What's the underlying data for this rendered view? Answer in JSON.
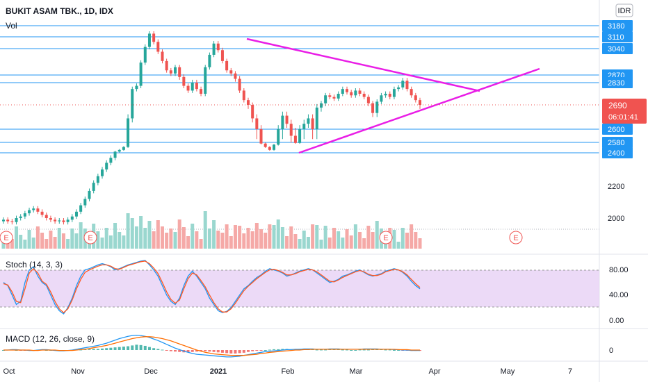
{
  "header": {
    "title": "BUKIT ASAM TBK., 1D, IDX",
    "volume_label": "Vol",
    "currency": "IDR"
  },
  "indicators": {
    "stoch_label": "Stoch (14, 3, 3)",
    "macd_label": "MACD (12, 26, close, 9)"
  },
  "price_badge": {
    "price": "2690",
    "countdown": "06:01:41"
  },
  "x_axis_labels": [
    "Oct",
    "Nov",
    "Dec",
    "2021",
    "Feb",
    "Mar",
    "Apr",
    "May",
    "7"
  ],
  "earnings_marker": "E",
  "colors": {
    "up": "#26a69a",
    "down": "#ef5350",
    "level_line": "#2196f3",
    "trend_line": "#e91ee6",
    "price_badge": "#f05350",
    "stoch_k": "#2196f3",
    "stoch_d": "#ff5722",
    "stoch_band": "#e1bee7"
  },
  "chart_data": [
    {
      "type": "candlestick",
      "title": "BUKIT ASAM TBK., 1D, IDX",
      "y_axis_labels": [
        "3180",
        "3110",
        "3040",
        "2870",
        "2830",
        "2690",
        "2600",
        "2580",
        "2400",
        "2200",
        "2000"
      ],
      "horizontal_levels": [
        3180,
        3110,
        3040,
        2870,
        2830,
        2600,
        2580,
        2400
      ],
      "last_price": 2690,
      "triangle_upper_line": [
        [
          3090,
          2810
        ],
        [
          2880,
          2700
        ]
      ],
      "triangle_lower_line": [
        [
          2450,
          2640
        ],
        [
          2890,
          2680
        ]
      ],
      "approx_close_series": [
        1990,
        1980,
        1975,
        2000,
        2010,
        2030,
        2050,
        2060,
        2040,
        2020,
        2000,
        1990,
        1980,
        1985,
        1975,
        1990,
        2010,
        2040,
        2080,
        2120,
        2170,
        2220,
        2260,
        2300,
        2340,
        2370,
        2420,
        2450,
        2500,
        2640,
        2790,
        2810,
        2950,
        3050,
        3130,
        3080,
        3020,
        2960,
        2900,
        2880,
        2920,
        2860,
        2810,
        2780,
        2830,
        2790,
        2760,
        2920,
        3000,
        3070,
        3030,
        2960,
        2900,
        2880,
        2850,
        2780,
        2720,
        2690,
        2640,
        2600,
        2560,
        2500,
        2450,
        2540,
        2600,
        2650,
        2620,
        2590,
        2570,
        2600,
        2620,
        2640,
        2600,
        2680,
        2700,
        2750,
        2740,
        2730,
        2760,
        2790,
        2770,
        2750,
        2780,
        2760,
        2740,
        2700,
        2660,
        2710,
        2750,
        2760,
        2740,
        2790,
        2800,
        2840,
        2790,
        2750,
        2720,
        2690
      ],
      "volume_note": "volume bars colored by candle direction"
    },
    {
      "type": "line",
      "title": "Stoch (14, 3, 3)",
      "y_axis_labels": [
        "80.00",
        "40.00",
        "0.00"
      ],
      "ylim": [
        0,
        100
      ],
      "band": [
        20,
        80
      ],
      "series": [
        {
          "name": "%K",
          "values": [
            60,
            55,
            40,
            25,
            30,
            60,
            80,
            85,
            70,
            60,
            55,
            40,
            25,
            15,
            10,
            20,
            35,
            55,
            70,
            80,
            82,
            85,
            88,
            90,
            88,
            85,
            80,
            82,
            85,
            88,
            90,
            92,
            94,
            95,
            88,
            80,
            70,
            55,
            40,
            30,
            25,
            35,
            55,
            70,
            78,
            70,
            60,
            50,
            35,
            25,
            15,
            12,
            14,
            20,
            30,
            40,
            50,
            55,
            62,
            68,
            72,
            78,
            82,
            80,
            78,
            75,
            70,
            72,
            75,
            78,
            80,
            82,
            80,
            75,
            70,
            65,
            60,
            62,
            65,
            70,
            72,
            75,
            78,
            80,
            76,
            72,
            70,
            72,
            74,
            78,
            80,
            82,
            80,
            76,
            70,
            62,
            55,
            50
          ]
        },
        {
          "name": "%D",
          "values": [
            58,
            56,
            45,
            30,
            28,
            50,
            75,
            82,
            75,
            62,
            57,
            45,
            30,
            18,
            12,
            18,
            32,
            50,
            65,
            76,
            80,
            83,
            86,
            88,
            88,
            86,
            82,
            81,
            84,
            87,
            89,
            91,
            93,
            94,
            90,
            83,
            74,
            60,
            45,
            33,
            27,
            32,
            50,
            66,
            75,
            72,
            63,
            53,
            40,
            28,
            18,
            13,
            13,
            18,
            27,
            37,
            47,
            54,
            60,
            66,
            71,
            76,
            80,
            81,
            79,
            76,
            72,
            72,
            74,
            77,
            79,
            81,
            80,
            77,
            72,
            67,
            62,
            61,
            64,
            68,
            71,
            74,
            77,
            79,
            77,
            73,
            71,
            71,
            73,
            77,
            79,
            81,
            80,
            77,
            72,
            65,
            58,
            52
          ]
        }
      ]
    },
    {
      "type": "bar",
      "title": "MACD (12, 26, close, 9)",
      "y_axis_labels": [
        "0"
      ],
      "series": [
        {
          "name": "histogram",
          "values": [
            0,
            1,
            1,
            0,
            -1,
            -1,
            0,
            0,
            1,
            1,
            0,
            0,
            -1,
            -1,
            -1,
            0,
            0,
            1,
            1,
            2,
            2,
            3,
            3,
            4,
            5,
            6,
            7,
            8,
            9,
            10,
            12,
            14,
            13,
            11,
            8,
            5,
            3,
            1,
            -1,
            -3,
            -4,
            -5,
            -6,
            -6,
            -5,
            -4,
            -3,
            -3,
            -4,
            -5,
            -6,
            -7,
            -8,
            -9,
            -9,
            -8,
            -7,
            -5,
            -3,
            -2,
            -1,
            0,
            1,
            2,
            2,
            3,
            3,
            2,
            2,
            3,
            3,
            2,
            2,
            1,
            1,
            1,
            2,
            2,
            2,
            1,
            1,
            0,
            0,
            1,
            1,
            1,
            2,
            2,
            2,
            1,
            1,
            0,
            0,
            -1,
            -1,
            -2,
            -2,
            -2
          ]
        },
        {
          "name": "MACD",
          "values": [
            0,
            0,
            1,
            1,
            0,
            0,
            -1,
            -1,
            0,
            1,
            1,
            0,
            -1,
            -2,
            -2,
            -1,
            0,
            2,
            4,
            6,
            8,
            10,
            12,
            15,
            18,
            22,
            26,
            30,
            33,
            36,
            38,
            39,
            38,
            36,
            33,
            29,
            25,
            20,
            15,
            10,
            5,
            1,
            -3,
            -6,
            -9,
            -11,
            -12,
            -13,
            -14,
            -15,
            -16,
            -17,
            -18,
            -18,
            -17,
            -16,
            -14,
            -12,
            -10,
            -8,
            -6,
            -4,
            -3,
            -2,
            -1,
            0,
            1,
            1,
            2,
            2,
            3,
            3,
            3,
            2,
            2,
            2,
            3,
            3,
            3,
            2,
            2,
            2,
            2,
            2,
            3,
            3,
            3,
            3,
            2,
            2,
            2,
            1,
            1,
            0,
            0,
            -1,
            -1,
            -1
          ]
        },
        {
          "name": "signal",
          "values": [
            0,
            0,
            0,
            0,
            0,
            0,
            0,
            -1,
            -1,
            0,
            0,
            0,
            0,
            -1,
            -1,
            -1,
            -1,
            0,
            1,
            2,
            4,
            6,
            8,
            10,
            12,
            15,
            18,
            21,
            24,
            27,
            30,
            32,
            34,
            35,
            35,
            34,
            32,
            30,
            27,
            24,
            20,
            16,
            12,
            8,
            4,
            0,
            -3,
            -6,
            -8,
            -10,
            -11,
            -12,
            -13,
            -14,
            -14,
            -14,
            -14,
            -13,
            -12,
            -11,
            -9,
            -8,
            -6,
            -5,
            -4,
            -3,
            -2,
            -1,
            0,
            0,
            1,
            1,
            2,
            2,
            2,
            2,
            2,
            2,
            2,
            2,
            2,
            2,
            2,
            2,
            2,
            2,
            2,
            2,
            2,
            2,
            2,
            2,
            1,
            1,
            1,
            0,
            0,
            0
          ]
        }
      ]
    }
  ]
}
